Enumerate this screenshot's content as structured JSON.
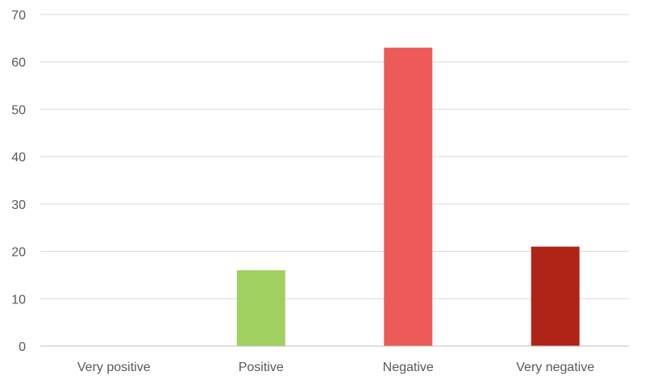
{
  "chart_data": {
    "type": "bar",
    "title": "",
    "xlabel": "",
    "ylabel": "",
    "categories": [
      "Very positive",
      "Positive",
      "Negative",
      "Very negative"
    ],
    "values": [
      0,
      16,
      63,
      21
    ],
    "bar_colors": [
      "#ffffff",
      "#a0d060",
      "#ec5b57",
      "#b02418"
    ],
    "ylim": [
      0,
      70
    ],
    "yticks": [
      0,
      10,
      20,
      30,
      40,
      50,
      60,
      70
    ],
    "grid": true,
    "legend": "none"
  }
}
